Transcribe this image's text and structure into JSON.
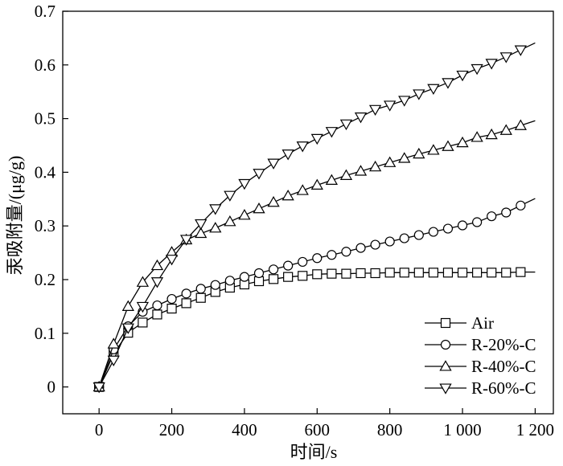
{
  "chart_data": {
    "type": "line",
    "title": "",
    "xlabel": "时间/s",
    "ylabel": "汞吸附量/(μg/g)",
    "xlim": [
      -100,
      1250
    ],
    "ylim": [
      -0.05,
      0.7
    ],
    "xticks": [
      0,
      200,
      400,
      600,
      800,
      1000,
      1200
    ],
    "xtick_labels": [
      "0",
      "200",
      "400",
      "600",
      "800",
      "1 000",
      "1 200"
    ],
    "yticks": [
      0,
      0.1,
      0.2,
      0.3,
      0.4,
      0.5,
      0.6,
      0.7
    ],
    "ytick_labels": [
      "0",
      "0.1",
      "0.2",
      "0.3",
      "0.4",
      "0.5",
      "0.6",
      "0.7"
    ],
    "grid": false,
    "legend_position": "bottom-right",
    "series": [
      {
        "name": "Air",
        "marker": "square",
        "x": [
          0,
          40,
          80,
          120,
          160,
          200,
          240,
          280,
          320,
          360,
          400,
          440,
          480,
          520,
          560,
          600,
          640,
          680,
          720,
          760,
          800,
          840,
          880,
          920,
          960,
          1000,
          1040,
          1080,
          1120,
          1160
        ],
        "y": [
          0,
          0.062,
          0.101,
          0.12,
          0.135,
          0.146,
          0.156,
          0.166,
          0.177,
          0.185,
          0.191,
          0.197,
          0.201,
          0.205,
          0.207,
          0.21,
          0.211,
          0.211,
          0.212,
          0.212,
          0.213,
          0.213,
          0.213,
          0.213,
          0.213,
          0.213,
          0.213,
          0.213,
          0.213,
          0.214
        ],
        "fit_x": [
          0,
          1200
        ],
        "fit_y_end": 0.214
      },
      {
        "name": "R-20%-C",
        "marker": "circle",
        "x": [
          0,
          40,
          80,
          120,
          160,
          200,
          240,
          280,
          320,
          360,
          400,
          440,
          480,
          520,
          560,
          600,
          640,
          680,
          720,
          760,
          800,
          840,
          880,
          920,
          960,
          1000,
          1040,
          1080,
          1120,
          1160
        ],
        "y": [
          0,
          0.07,
          0.113,
          0.14,
          0.152,
          0.164,
          0.174,
          0.183,
          0.19,
          0.198,
          0.205,
          0.212,
          0.219,
          0.226,
          0.233,
          0.24,
          0.246,
          0.252,
          0.259,
          0.265,
          0.271,
          0.277,
          0.283,
          0.289,
          0.295,
          0.301,
          0.307,
          0.318,
          0.325,
          0.338
        ]
      },
      {
        "name": "R-40%-C",
        "marker": "triangle-up",
        "x": [
          0,
          40,
          80,
          120,
          160,
          200,
          240,
          280,
          320,
          360,
          400,
          440,
          480,
          520,
          560,
          600,
          640,
          680,
          720,
          760,
          800,
          840,
          880,
          920,
          960,
          1000,
          1040,
          1080,
          1120,
          1160
        ],
        "y": [
          0,
          0.08,
          0.15,
          0.195,
          0.226,
          0.251,
          0.274,
          0.286,
          0.296,
          0.308,
          0.32,
          0.332,
          0.344,
          0.356,
          0.366,
          0.376,
          0.385,
          0.394,
          0.402,
          0.41,
          0.418,
          0.426,
          0.434,
          0.441,
          0.448,
          0.455,
          0.465,
          0.47,
          0.478,
          0.487
        ]
      },
      {
        "name": "R-60%-C",
        "marker": "triangle-down",
        "x": [
          0,
          40,
          80,
          120,
          160,
          200,
          240,
          280,
          320,
          360,
          400,
          440,
          480,
          520,
          560,
          600,
          640,
          680,
          720,
          760,
          800,
          840,
          880,
          920,
          960,
          1000,
          1040,
          1080,
          1120,
          1160
        ],
        "y": [
          0,
          0.05,
          0.11,
          0.15,
          0.196,
          0.238,
          0.275,
          0.304,
          0.332,
          0.357,
          0.379,
          0.398,
          0.417,
          0.434,
          0.449,
          0.463,
          0.476,
          0.49,
          0.503,
          0.517,
          0.525,
          0.534,
          0.546,
          0.556,
          0.567,
          0.581,
          0.593,
          0.603,
          0.615,
          0.628
        ]
      }
    ]
  }
}
